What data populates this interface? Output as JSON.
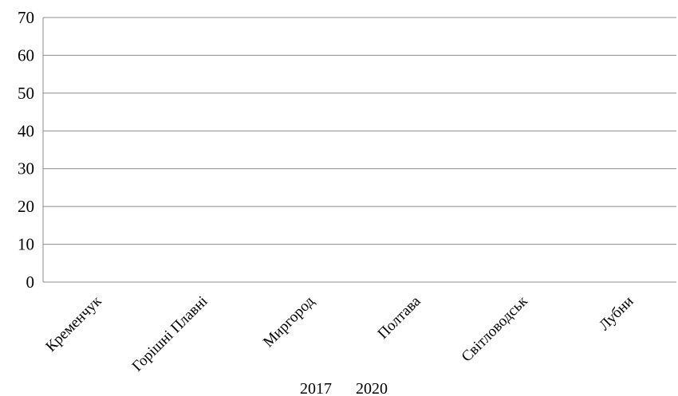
{
  "chart_data": {
    "type": "bar",
    "title": "",
    "xlabel": "",
    "ylabel": "",
    "categories": [
      "Кременчук",
      "Горішні Плавні",
      "Миргород",
      "Полтава",
      "Світловодськ",
      "Лубни"
    ],
    "series": [
      {
        "name": "2017",
        "values": [
          0,
          0,
          0,
          0,
          0,
          0
        ],
        "color": "#4f81bd"
      },
      {
        "name": "2020",
        "values": [
          0,
          0,
          0,
          0,
          0,
          0
        ],
        "color": "#c0504d"
      }
    ],
    "ylim": [
      0,
      70
    ],
    "yticks": [
      "0",
      "10",
      "20",
      "30",
      "40",
      "50",
      "60",
      "70"
    ],
    "grid": true,
    "legend_position": "bottom",
    "colors": {
      "gridline": "#8c8c8c",
      "axis": "#8c8c8c",
      "text": "#000000"
    }
  }
}
